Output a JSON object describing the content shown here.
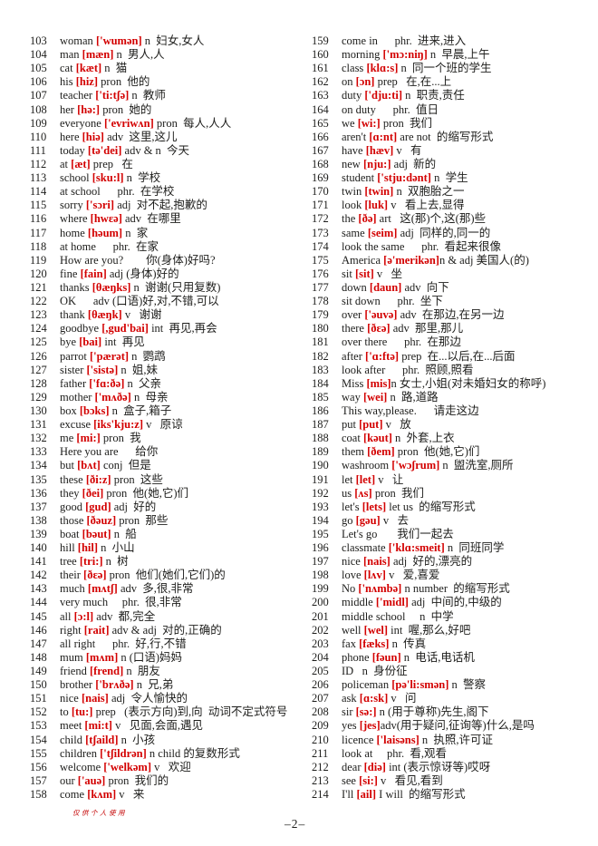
{
  "footer": {
    "note": "仅供个人使用",
    "page_number": "–2–"
  },
  "colors": {
    "phonetic": "#d30000",
    "text": "#1d1d1b",
    "note_red": "#c40000"
  },
  "columns": {
    "left": [
      {
        "n": "103",
        "w": "woman",
        "p": "['wumən]",
        "r": " n  妇女,女人"
      },
      {
        "n": "104",
        "w": "man",
        "p": "[mæn]",
        "r": " n  男人,人"
      },
      {
        "n": "105",
        "w": "cat",
        "p": "[kæt]",
        "r": " n  猫"
      },
      {
        "n": "106",
        "w": "his",
        "p": "[hiz]",
        "r": " pron  他的"
      },
      {
        "n": "107",
        "w": "teacher",
        "p": "['ti:tʃə]",
        "r": " n  教师"
      },
      {
        "n": "108",
        "w": "her",
        "p": "[hə:]",
        "r": " pron  她的"
      },
      {
        "n": "109",
        "w": "everyone",
        "p": "['evriwʌn]",
        "r": " pron  每人,人人"
      },
      {
        "n": "110",
        "w": "here",
        "p": "[hiə]",
        "r": " adv  这里,这儿"
      },
      {
        "n": "111",
        "w": "today",
        "p": "[tə'dei]",
        "r": " adv & n  今天"
      },
      {
        "n": "112",
        "w": "at",
        "p": "[æt]",
        "r": " prep   在"
      },
      {
        "n": "113",
        "w": "school",
        "p": "[sku:l]",
        "r": " n  学校"
      },
      {
        "n": "114",
        "w": "at school",
        "p": "",
        "r": "      phr.  在学校"
      },
      {
        "n": "115",
        "w": "sorry",
        "p": "['sɔri]",
        "r": " adj  对不起,抱歉的"
      },
      {
        "n": "116",
        "w": "where",
        "p": "[hwɛə]",
        "r": " adv  在哪里"
      },
      {
        "n": "117",
        "w": "home",
        "p": "[həum]",
        "r": " n  家"
      },
      {
        "n": "118",
        "w": "at home",
        "p": "",
        "r": "      phr.  在家"
      },
      {
        "n": "119",
        "w": "How are you?",
        "p": "",
        "r": "        你(身体)好吗?"
      },
      {
        "n": "120",
        "w": "fine",
        "p": "[fain]",
        "r": " adj (身体)好的"
      },
      {
        "n": "121",
        "w": "thanks",
        "p": "[θæŋks]",
        "r": " n  谢谢(只用复数)"
      },
      {
        "n": "122",
        "w": "OK",
        "p": "",
        "r": "      adv (口语)好,对,不错,可以"
      },
      {
        "n": "123",
        "w": "thank",
        "p": "[θæŋk]",
        "r": " v   谢谢"
      },
      {
        "n": "124",
        "w": "goodbye",
        "p": "[,gud'bai]",
        "r": " int  再见,再会"
      },
      {
        "n": "125",
        "w": "bye",
        "p": "[bai]",
        "r": " int  再见"
      },
      {
        "n": "126",
        "w": "parrot",
        "p": "['pærət]",
        "r": " n  鹦鹉"
      },
      {
        "n": "127",
        "w": "sister",
        "p": "['sistə]",
        "r": " n  姐,妹"
      },
      {
        "n": "128",
        "w": "father",
        "p": "['fɑ:ðə]",
        "r": " n  父亲"
      },
      {
        "n": "129",
        "w": "mother",
        "p": "['mʌðə]",
        "r": " n  母亲"
      },
      {
        "n": "130",
        "w": "box",
        "p": "[bɔks]",
        "r": " n  盒子,箱子"
      },
      {
        "n": "131",
        "w": "excuse",
        "p": "[iks'kju:z]",
        "r": " v   原谅"
      },
      {
        "n": "132",
        "w": "me",
        "p": "[mi:]",
        "r": " pron  我"
      },
      {
        "n": "133",
        "w": "Here you are",
        "p": "",
        "r": "      给你"
      },
      {
        "n": "134",
        "w": "but",
        "p": "[bʌt]",
        "r": " conj  但是"
      },
      {
        "n": "135",
        "w": "these",
        "p": "[ði:z]",
        "r": " pron  这些"
      },
      {
        "n": "136",
        "w": "they",
        "p": "[ðei]",
        "r": " pron  他(她,它)们"
      },
      {
        "n": "137",
        "w": "good",
        "p": "[gud]",
        "r": " adj  好的"
      },
      {
        "n": "138",
        "w": "those",
        "p": "[ðəuz]",
        "r": " pron  那些"
      },
      {
        "n": "139",
        "w": "boat",
        "p": "[bəut]",
        "r": " n  船"
      },
      {
        "n": "140",
        "w": "hill",
        "p": "[hil]",
        "r": " n  小山"
      },
      {
        "n": "141",
        "w": "tree",
        "p": "[tri:]",
        "r": " n  树"
      },
      {
        "n": "142",
        "w": "their",
        "p": "[ðɛə]",
        "r": " pron  他们(她们,它们)的"
      },
      {
        "n": "143",
        "w": "much",
        "p": "[mʌtʃ]",
        "r": " adv  多,很,非常"
      },
      {
        "n": "144",
        "w": "very much",
        "p": "",
        "r": "     phr.  很,非常"
      },
      {
        "n": "145",
        "w": "all",
        "p": "[ɔ:l]",
        "r": " adv  都,完全"
      },
      {
        "n": "146",
        "w": "right",
        "p": "[rait]",
        "r": " adv & adj  对的,正确的"
      },
      {
        "n": "147",
        "w": "all right",
        "p": "",
        "r": "      phr.  好,行,不错"
      },
      {
        "n": "148",
        "w": "mum",
        "p": "[mʌm]",
        "r": " n (口语)妈妈"
      },
      {
        "n": "149",
        "w": "friend",
        "p": "[frend]",
        "r": " n  朋友"
      },
      {
        "n": "150",
        "w": "brother",
        "p": "['brʌðə]",
        "r": " n  兄,弟"
      },
      {
        "n": "151",
        "w": "nice",
        "p": "[nais]",
        "r": " adj  令人愉快的"
      },
      {
        "n": "152",
        "w": "to",
        "p": "[tu:]",
        "r": " prep   (表示方向)到,向  动词不定式符号"
      },
      {
        "n": "153",
        "w": "meet",
        "p": "[mi:t]",
        "r": " v   见面,会面,遇见"
      },
      {
        "n": "154",
        "w": "child",
        "p": "[tʃaild]",
        "r": " n  小孩"
      },
      {
        "n": "155",
        "w": "children",
        "p": "['tʃildrən]",
        "r": " n child 的复数形式"
      },
      {
        "n": "156",
        "w": "welcome",
        "p": "['welkəm]",
        "r": " v   欢迎"
      },
      {
        "n": "157",
        "w": "our",
        "p": "['auə]",
        "r": " pron  我们的"
      },
      {
        "n": "158",
        "w": "come",
        "p": "[kʌm]",
        "r": " v   来"
      }
    ],
    "right": [
      {
        "n": "159",
        "w": "come in",
        "p": "",
        "r": "      phr.  进来,进入"
      },
      {
        "n": "160",
        "w": "morning",
        "p": "['mɔ:niŋ]",
        "r": " n  早晨,上午"
      },
      {
        "n": "161",
        "w": "class",
        "p": "[klɑ:s]",
        "r": " n  同一个班的学生"
      },
      {
        "n": "162",
        "w": "on",
        "p": "[ɔn]",
        "r": " prep   在,在...上"
      },
      {
        "n": "163",
        "w": "duty",
        "p": "['dju:ti]",
        "r": " n  职责,责任"
      },
      {
        "n": "164",
        "w": "on duty",
        "p": "",
        "r": "      phr.  值日"
      },
      {
        "n": "165",
        "w": "we",
        "p": "[wi:]",
        "r": " pron  我们"
      },
      {
        "n": "166",
        "w": "aren't",
        "p": "[ɑ:nt]",
        "r": " are not  的缩写形式"
      },
      {
        "n": "167",
        "w": "have",
        "p": "[hæv]",
        "r": " v   有"
      },
      {
        "n": "168",
        "w": "new",
        "p": "[nju:]",
        "r": " adj  新的"
      },
      {
        "n": "169",
        "w": "student",
        "p": "['stju:dənt]",
        "r": " n  学生"
      },
      {
        "n": "170",
        "w": "twin",
        "p": "[twin]",
        "r": " n  双胞胎之一"
      },
      {
        "n": "171",
        "w": "look",
        "p": "[luk]",
        "r": " v   看上去,显得"
      },
      {
        "n": "172",
        "w": "the",
        "p": "[ðə]",
        "r": " art   这(那)个,这(那)些"
      },
      {
        "n": "173",
        "w": "same",
        "p": "[seim]",
        "r": " adj  同样的,同一的"
      },
      {
        "n": "174",
        "w": "look the same",
        "p": "",
        "r": "      phr.  看起来很像"
      },
      {
        "n": "175",
        "w": "America",
        "p": "[ə'merikən]",
        "r": "n & adj 美国人(的)"
      },
      {
        "n": "176",
        "w": "sit",
        "p": "[sit]",
        "r": " v   坐"
      },
      {
        "n": "177",
        "w": "down",
        "p": "[daun]",
        "r": " adv  向下"
      },
      {
        "n": "178",
        "w": "sit down",
        "p": "",
        "r": "      phr.  坐下"
      },
      {
        "n": "179",
        "w": "over",
        "p": "['əuvə]",
        "r": " adv  在那边,在另一边"
      },
      {
        "n": "180",
        "w": "there",
        "p": "[ðɛə]",
        "r": " adv  那里,那儿"
      },
      {
        "n": "181",
        "w": "over there",
        "p": "",
        "r": "      phr.  在那边"
      },
      {
        "n": "182",
        "w": "after",
        "p": "['ɑ:ftə]",
        "r": " prep  在...以后,在...后面"
      },
      {
        "n": "183",
        "w": "look after",
        "p": "",
        "r": "      phr.  照顾,照看"
      },
      {
        "n": "184",
        "w": "Miss",
        "p": "[mis]",
        "r": "n 女士,小姐(对未婚妇女的称呼)"
      },
      {
        "n": "185",
        "w": "way",
        "p": "[wei]",
        "r": " n  路,道路"
      },
      {
        "n": "186",
        "w": "This way,please.",
        "p": "",
        "r": "      请走这边"
      },
      {
        "n": "187",
        "w": "put",
        "p": "[put]",
        "r": " v   放"
      },
      {
        "n": "188",
        "w": "coat",
        "p": "[kəut]",
        "r": " n  外套,上衣"
      },
      {
        "n": "189",
        "w": "them",
        "p": "[ðem]",
        "r": " pron  他(她,它)们"
      },
      {
        "n": "190",
        "w": "washroom",
        "p": "['wɔʃrum]",
        "r": " n  盥洗室,厕所"
      },
      {
        "n": "191",
        "w": "let",
        "p": "[let]",
        "r": " v   让"
      },
      {
        "n": "192",
        "w": "us",
        "p": "[ʌs]",
        "r": " pron  我们"
      },
      {
        "n": "193",
        "w": "let's",
        "p": "[lets]",
        "r": " let us  的缩写形式"
      },
      {
        "n": "194",
        "w": "go",
        "p": "[gəu]",
        "r": " v   去"
      },
      {
        "n": "195",
        "w": "Let's go",
        "p": "",
        "r": "       我们一起去"
      },
      {
        "n": "196",
        "w": "classmate",
        "p": "['klɑ:smeit]",
        "r": " n  同班同学"
      },
      {
        "n": "197",
        "w": "nice",
        "p": "[nais]",
        "r": " adj  好的,漂亮的"
      },
      {
        "n": "198",
        "w": "love",
        "p": "[lʌv]",
        "r": " v   爱,喜爱"
      },
      {
        "n": "199",
        "w": "No",
        "p": "['nʌmbə]",
        "r": " n number  的缩写形式"
      },
      {
        "n": "200",
        "w": "middle",
        "p": "['midl]",
        "r": " adj  中间的,中级的"
      },
      {
        "n": "201",
        "w": "middle school",
        "p": "",
        "r": "     n  中学"
      },
      {
        "n": "202",
        "w": "well",
        "p": "[wel]",
        "r": " int  喔,那么,好吧"
      },
      {
        "n": "203",
        "w": "fax",
        "p": "[fæks]",
        "r": " n  传真"
      },
      {
        "n": "204",
        "w": "phone",
        "p": "[fəun]",
        "r": " n  电话,电话机"
      },
      {
        "n": "205",
        "w": "ID",
        "p": "",
        "r": "   n  身份征"
      },
      {
        "n": "206",
        "w": "policeman",
        "p": "[pə'li:smən]",
        "r": " n  警察"
      },
      {
        "n": "207",
        "w": "ask",
        "p": "[ɑ:sk]",
        "r": " v   问"
      },
      {
        "n": "208",
        "w": "sir",
        "p": "[sə:]",
        "r": " n (用于尊称)先生,阁下"
      },
      {
        "n": "209",
        "w": "yes",
        "p": "[jes]",
        "r": "adv(用于疑问,征询等)什么,是吗"
      },
      {
        "n": "210",
        "w": "licence",
        "p": "['laisəns]",
        "r": " n  执照,许可证"
      },
      {
        "n": "211",
        "w": "look at",
        "p": "",
        "r": "     phr.  看,观看"
      },
      {
        "n": "212",
        "w": "dear",
        "p": "[diə]",
        "r": " int (表示惊讶等)哎呀"
      },
      {
        "n": "213",
        "w": "see",
        "p": "[si:]",
        "r": " v   看见,看到"
      },
      {
        "n": "214",
        "w": "I'll",
        "p": "[ail]",
        "r": " I will  的缩写形式"
      }
    ]
  }
}
